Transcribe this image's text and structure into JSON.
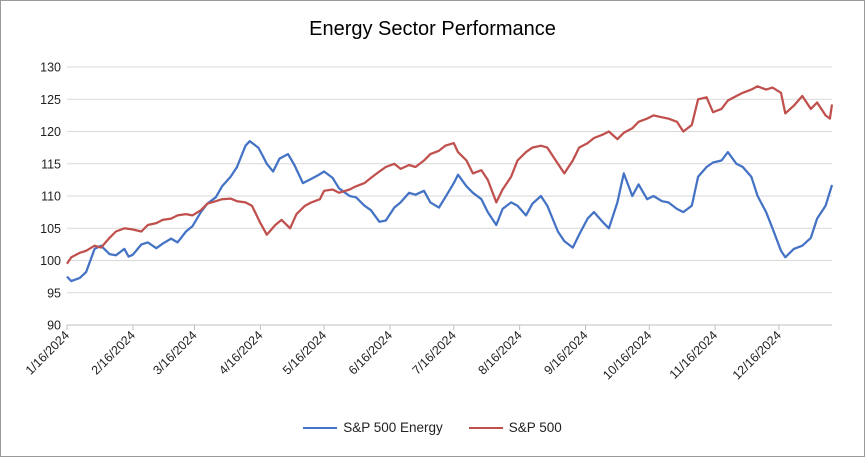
{
  "chart_data": {
    "type": "line",
    "title": "Energy Sector Performance",
    "xlabel": "",
    "ylabel": "",
    "ylim": [
      90,
      130
    ],
    "yticks": [
      90,
      95,
      100,
      105,
      110,
      115,
      120,
      125,
      130
    ],
    "x_tick_labels": [
      "1/16/2024",
      "2/16/2024",
      "3/16/2024",
      "4/16/2024",
      "5/16/2024",
      "6/16/2024",
      "7/16/2024",
      "8/16/2024",
      "9/16/2024",
      "10/16/2024",
      "11/16/2024",
      "12/16/2024"
    ],
    "x_range": [
      "1/16/2024",
      "1/10/2025"
    ],
    "grid": {
      "horizontal": true,
      "vertical": false
    },
    "legend_position": "bottom",
    "series": [
      {
        "name": "S&P 500 Energy",
        "color": "#4472C4",
        "points": [
          [
            "1/16/2024",
            97.5
          ],
          [
            "1/18/2024",
            96.8
          ],
          [
            "1/22/2024",
            97.3
          ],
          [
            "1/25/2024",
            98.2
          ],
          [
            "1/29/2024",
            101.8
          ],
          [
            "2/1/2024",
            102.3
          ],
          [
            "2/5/2024",
            101.0
          ],
          [
            "2/8/2024",
            100.8
          ],
          [
            "2/12/2024",
            101.8
          ],
          [
            "2/14/2024",
            100.6
          ],
          [
            "2/16/2024",
            100.9
          ],
          [
            "2/20/2024",
            102.5
          ],
          [
            "2/23/2024",
            102.8
          ],
          [
            "2/27/2024",
            101.9
          ],
          [
            "3/1/2024",
            102.6
          ],
          [
            "3/5/2024",
            103.4
          ],
          [
            "3/8/2024",
            102.8
          ],
          [
            "3/12/2024",
            104.5
          ],
          [
            "3/15/2024",
            105.3
          ],
          [
            "3/19/2024",
            107.5
          ],
          [
            "3/22/2024",
            108.8
          ],
          [
            "3/26/2024",
            109.8
          ],
          [
            "3/29/2024",
            111.5
          ],
          [
            "4/2/2024",
            113.0
          ],
          [
            "4/5/2024",
            114.5
          ],
          [
            "4/9/2024",
            117.8
          ],
          [
            "4/11/2024",
            118.5
          ],
          [
            "4/15/2024",
            117.5
          ],
          [
            "4/17/2024",
            116.3
          ],
          [
            "4/19/2024",
            115.0
          ],
          [
            "4/22/2024",
            113.8
          ],
          [
            "4/25/2024",
            115.8
          ],
          [
            "4/29/2024",
            116.5
          ],
          [
            "5/2/2024",
            114.8
          ],
          [
            "5/6/2024",
            112.0
          ],
          [
            "5/9/2024",
            112.5
          ],
          [
            "5/13/2024",
            113.2
          ],
          [
            "5/16/2024",
            113.8
          ],
          [
            "5/20/2024",
            112.8
          ],
          [
            "5/23/2024",
            111.2
          ],
          [
            "5/28/2024",
            110.0
          ],
          [
            "5/31/2024",
            109.8
          ],
          [
            "6/4/2024",
            108.5
          ],
          [
            "6/7/2024",
            107.8
          ],
          [
            "6/11/2024",
            106.0
          ],
          [
            "6/14/2024",
            106.2
          ],
          [
            "6/18/2024",
            108.2
          ],
          [
            "6/21/2024",
            109.0
          ],
          [
            "6/25/2024",
            110.5
          ],
          [
            "6/28/2024",
            110.2
          ],
          [
            "7/2/2024",
            110.8
          ],
          [
            "7/5/2024",
            109.0
          ],
          [
            "7/9/2024",
            108.2
          ],
          [
            "7/12/2024",
            109.8
          ],
          [
            "7/16/2024",
            112.0
          ],
          [
            "7/18/2024",
            113.3
          ],
          [
            "7/22/2024",
            111.5
          ],
          [
            "7/25/2024",
            110.5
          ],
          [
            "7/29/2024",
            109.5
          ],
          [
            "8/1/2024",
            107.5
          ],
          [
            "8/5/2024",
            105.5
          ],
          [
            "8/8/2024",
            108.0
          ],
          [
            "8/12/2024",
            109.0
          ],
          [
            "8/15/2024",
            108.5
          ],
          [
            "8/19/2024",
            107.0
          ],
          [
            "8/22/2024",
            108.8
          ],
          [
            "8/26/2024",
            110.0
          ],
          [
            "8/29/2024",
            108.5
          ],
          [
            "9/3/2024",
            104.5
          ],
          [
            "9/6/2024",
            103.0
          ],
          [
            "9/10/2024",
            102.0
          ],
          [
            "9/13/2024",
            104.0
          ],
          [
            "9/17/2024",
            106.5
          ],
          [
            "9/20/2024",
            107.5
          ],
          [
            "9/24/2024",
            106.0
          ],
          [
            "9/27/2024",
            105.0
          ],
          [
            "10/1/2024",
            109.0
          ],
          [
            "10/4/2024",
            113.5
          ],
          [
            "10/8/2024",
            110.0
          ],
          [
            "10/11/2024",
            111.8
          ],
          [
            "10/15/2024",
            109.5
          ],
          [
            "10/18/2024",
            110.0
          ],
          [
            "10/22/2024",
            109.2
          ],
          [
            "10/25/2024",
            109.0
          ],
          [
            "10/29/2024",
            108.0
          ],
          [
            "11/1/2024",
            107.5
          ],
          [
            "11/5/2024",
            108.5
          ],
          [
            "11/8/2024",
            113.0
          ],
          [
            "11/12/2024",
            114.5
          ],
          [
            "11/15/2024",
            115.2
          ],
          [
            "11/19/2024",
            115.5
          ],
          [
            "11/22/2024",
            116.8
          ],
          [
            "11/26/2024",
            115.0
          ],
          [
            "11/29/2024",
            114.5
          ],
          [
            "12/3/2024",
            113.0
          ],
          [
            "12/6/2024",
            110.0
          ],
          [
            "12/10/2024",
            107.5
          ],
          [
            "12/13/2024",
            105.0
          ],
          [
            "12/17/2024",
            101.5
          ],
          [
            "12/19/2024",
            100.5
          ],
          [
            "12/23/2024",
            101.8
          ],
          [
            "12/27/2024",
            102.3
          ],
          [
            "12/31/2024",
            103.5
          ],
          [
            "1/3/2025",
            106.5
          ],
          [
            "1/7/2025",
            108.5
          ],
          [
            "1/10/2025",
            111.7
          ]
        ]
      },
      {
        "name": "S&P 500",
        "color": "#C0504D",
        "points": [
          [
            "1/16/2024",
            99.5
          ],
          [
            "1/18/2024",
            100.5
          ],
          [
            "1/22/2024",
            101.2
          ],
          [
            "1/25/2024",
            101.5
          ],
          [
            "1/29/2024",
            102.3
          ],
          [
            "2/1/2024",
            102.0
          ],
          [
            "2/5/2024",
            103.5
          ],
          [
            "2/8/2024",
            104.5
          ],
          [
            "2/12/2024",
            105.0
          ],
          [
            "2/16/2024",
            104.8
          ],
          [
            "2/20/2024",
            104.5
          ],
          [
            "2/23/2024",
            105.5
          ],
          [
            "2/27/2024",
            105.8
          ],
          [
            "3/1/2024",
            106.3
          ],
          [
            "3/5/2024",
            106.5
          ],
          [
            "3/8/2024",
            107.0
          ],
          [
            "3/12/2024",
            107.2
          ],
          [
            "3/15/2024",
            107.0
          ],
          [
            "3/19/2024",
            107.8
          ],
          [
            "3/22/2024",
            108.8
          ],
          [
            "3/26/2024",
            109.2
          ],
          [
            "3/29/2024",
            109.5
          ],
          [
            "4/2/2024",
            109.6
          ],
          [
            "4/5/2024",
            109.2
          ],
          [
            "4/9/2024",
            109.0
          ],
          [
            "4/12/2024",
            108.5
          ],
          [
            "4/16/2024",
            105.8
          ],
          [
            "4/19/2024",
            104.0
          ],
          [
            "4/23/2024",
            105.5
          ],
          [
            "4/26/2024",
            106.3
          ],
          [
            "4/30/2024",
            105.0
          ],
          [
            "5/3/2024",
            107.2
          ],
          [
            "5/7/2024",
            108.5
          ],
          [
            "5/10/2024",
            109.0
          ],
          [
            "5/14/2024",
            109.5
          ],
          [
            "5/16/2024",
            110.8
          ],
          [
            "5/20/2024",
            111.0
          ],
          [
            "5/23/2024",
            110.5
          ],
          [
            "5/28/2024",
            111.0
          ],
          [
            "5/31/2024",
            111.5
          ],
          [
            "6/4/2024",
            112.0
          ],
          [
            "6/7/2024",
            112.8
          ],
          [
            "6/11/2024",
            113.8
          ],
          [
            "6/14/2024",
            114.5
          ],
          [
            "6/18/2024",
            115.0
          ],
          [
            "6/21/2024",
            114.2
          ],
          [
            "6/25/2024",
            114.8
          ],
          [
            "6/28/2024",
            114.5
          ],
          [
            "7/2/2024",
            115.5
          ],
          [
            "7/5/2024",
            116.5
          ],
          [
            "7/9/2024",
            117.0
          ],
          [
            "7/12/2024",
            117.8
          ],
          [
            "7/16/2024",
            118.2
          ],
          [
            "7/18/2024",
            116.8
          ],
          [
            "7/22/2024",
            115.5
          ],
          [
            "7/25/2024",
            113.5
          ],
          [
            "7/29/2024",
            114.0
          ],
          [
            "8/1/2024",
            112.5
          ],
          [
            "8/5/2024",
            109.0
          ],
          [
            "8/8/2024",
            111.0
          ],
          [
            "8/12/2024",
            113.0
          ],
          [
            "8/15/2024",
            115.5
          ],
          [
            "8/19/2024",
            116.8
          ],
          [
            "8/22/2024",
            117.5
          ],
          [
            "8/26/2024",
            117.8
          ],
          [
            "8/29/2024",
            117.5
          ],
          [
            "9/3/2024",
            115.0
          ],
          [
            "9/6/2024",
            113.5
          ],
          [
            "9/10/2024",
            115.5
          ],
          [
            "9/13/2024",
            117.5
          ],
          [
            "9/17/2024",
            118.2
          ],
          [
            "9/20/2024",
            119.0
          ],
          [
            "9/24/2024",
            119.5
          ],
          [
            "9/27/2024",
            120.0
          ],
          [
            "10/1/2024",
            118.8
          ],
          [
            "10/4/2024",
            119.8
          ],
          [
            "10/8/2024",
            120.5
          ],
          [
            "10/11/2024",
            121.5
          ],
          [
            "10/15/2024",
            122.0
          ],
          [
            "10/18/2024",
            122.5
          ],
          [
            "10/22/2024",
            122.2
          ],
          [
            "10/25/2024",
            122.0
          ],
          [
            "10/29/2024",
            121.5
          ],
          [
            "11/1/2024",
            120.0
          ],
          [
            "11/5/2024",
            121.0
          ],
          [
            "11/8/2024",
            125.0
          ],
          [
            "11/12/2024",
            125.3
          ],
          [
            "11/15/2024",
            123.0
          ],
          [
            "11/19/2024",
            123.5
          ],
          [
            "11/22/2024",
            124.8
          ],
          [
            "11/26/2024",
            125.5
          ],
          [
            "11/29/2024",
            126.0
          ],
          [
            "12/3/2024",
            126.5
          ],
          [
            "12/6/2024",
            127.0
          ],
          [
            "12/10/2024",
            126.5
          ],
          [
            "12/13/2024",
            126.8
          ],
          [
            "12/17/2024",
            126.0
          ],
          [
            "12/19/2024",
            122.8
          ],
          [
            "12/23/2024",
            124.0
          ],
          [
            "12/27/2024",
            125.5
          ],
          [
            "12/31/2024",
            123.5
          ],
          [
            "1/3/2025",
            124.5
          ],
          [
            "1/7/2025",
            122.5
          ],
          [
            "1/9/2025",
            122.0
          ],
          [
            "1/10/2025",
            124.2
          ]
        ]
      }
    ]
  }
}
